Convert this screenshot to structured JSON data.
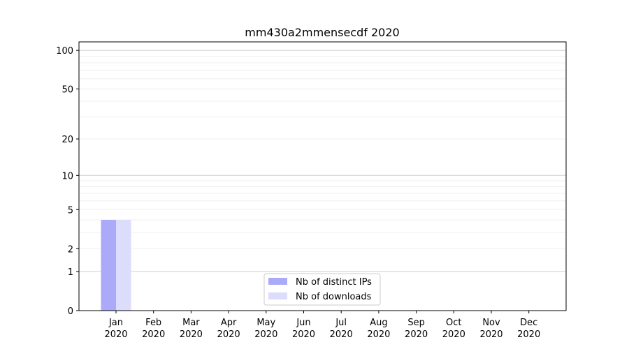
{
  "chart_data": {
    "type": "bar",
    "title": "mm430a2mmensecdf 2020",
    "xlabel": "",
    "ylabel": "",
    "yscale": "symlog",
    "ylim": [
      0,
      117
    ],
    "yticks": [
      0,
      1,
      2,
      5,
      10,
      20,
      50,
      100
    ],
    "grid": true,
    "legend_position": "lower-center",
    "categories": [
      "Jan\n2020",
      "Feb\n2020",
      "Mar\n2020",
      "Apr\n2020",
      "May\n2020",
      "Jun\n2020",
      "Jul\n2020",
      "Aug\n2020",
      "Sep\n2020",
      "Oct\n2020",
      "Nov\n2020",
      "Dec\n2020"
    ],
    "series": [
      {
        "name": "Nb of distinct IPs",
        "color": "#aaaaf8",
        "values": [
          4,
          0,
          0,
          0,
          0,
          0,
          0,
          0,
          0,
          0,
          0,
          0
        ]
      },
      {
        "name": "Nb of downloads",
        "color": "#dcdcfc",
        "values": [
          4,
          0,
          0,
          0,
          0,
          0,
          0,
          0,
          0,
          0,
          0,
          0
        ]
      }
    ]
  }
}
